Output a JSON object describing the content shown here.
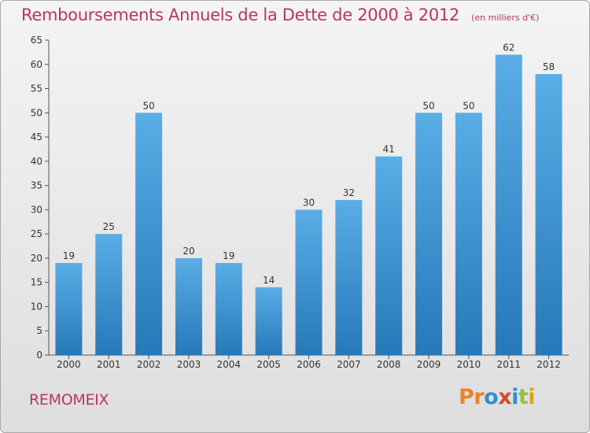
{
  "header": {
    "title": "Remboursements Annuels de la Dette de 2000 à 2012",
    "unit": "(en milliers d'€)"
  },
  "footer": {
    "place": "REMOMEIX",
    "logo_text": "Proxiti",
    "logo_colors": [
      "#e8842a",
      "#e8842a",
      "#2f8fd0",
      "#d84a2a",
      "#2f8fd0",
      "#8cc63f",
      "#e0a020"
    ]
  },
  "chart_data": {
    "type": "bar",
    "categories": [
      "2000",
      "2001",
      "2002",
      "2003",
      "2004",
      "2005",
      "2006",
      "2007",
      "2008",
      "2009",
      "2010",
      "2011",
      "2012"
    ],
    "values": [
      19,
      25,
      50,
      20,
      19,
      14,
      30,
      32,
      41,
      50,
      50,
      62,
      58
    ],
    "ylim": [
      0,
      65
    ],
    "yticks": [
      0,
      5,
      10,
      15,
      20,
      25,
      30,
      35,
      40,
      45,
      50,
      55,
      60,
      65
    ],
    "grid": false,
    "bar_color_top": "#5aaee6",
    "bar_color_bottom": "#2678b8"
  }
}
